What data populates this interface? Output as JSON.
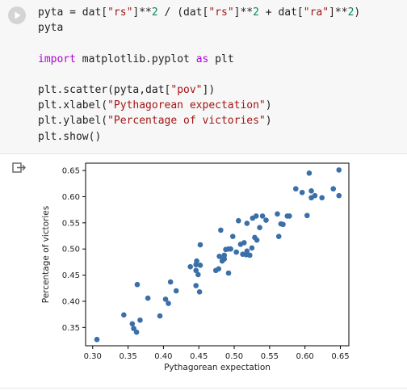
{
  "code_cell": {
    "lines": [
      [
        {
          "t": "pyta = dat[",
          "c": ""
        },
        {
          "t": "\"rs\"",
          "c": "str"
        },
        {
          "t": "]**",
          "c": ""
        },
        {
          "t": "2",
          "c": "num"
        },
        {
          "t": " / (dat[",
          "c": ""
        },
        {
          "t": "\"rs\"",
          "c": "str"
        },
        {
          "t": "]**",
          "c": ""
        },
        {
          "t": "2",
          "c": "num"
        },
        {
          "t": " + dat[",
          "c": ""
        },
        {
          "t": "\"ra\"",
          "c": "str"
        },
        {
          "t": "]**",
          "c": ""
        },
        {
          "t": "2",
          "c": "num"
        },
        {
          "t": ")",
          "c": ""
        }
      ],
      [
        {
          "t": "pyta",
          "c": ""
        }
      ],
      [
        {
          "t": "",
          "c": ""
        }
      ],
      [
        {
          "t": "import",
          "c": "kw"
        },
        {
          "t": " matplotlib.pyplot ",
          "c": ""
        },
        {
          "t": "as",
          "c": "kw"
        },
        {
          "t": " plt",
          "c": ""
        }
      ],
      [
        {
          "t": "",
          "c": ""
        }
      ],
      [
        {
          "t": "plt.scatter(pyta,dat[",
          "c": ""
        },
        {
          "t": "\"pov\"",
          "c": "str"
        },
        {
          "t": "])",
          "c": ""
        }
      ],
      [
        {
          "t": "plt.xlabel(",
          "c": ""
        },
        {
          "t": "\"Pythagorean expectation\"",
          "c": "str"
        },
        {
          "t": ")",
          "c": ""
        }
      ],
      [
        {
          "t": "plt.ylabel(",
          "c": ""
        },
        {
          "t": "\"Percentage of victories\"",
          "c": "str"
        },
        {
          "t": ")",
          "c": ""
        }
      ],
      [
        {
          "t": "plt.show()",
          "c": ""
        }
      ]
    ]
  },
  "icons": {
    "run": "play-icon",
    "output": "output-redirect-icon"
  },
  "colors": {
    "cell_bg": "#f7f7f7",
    "point": "#3a6fa8",
    "string": "#a31515",
    "keyword": "#af00db",
    "number": "#098658"
  },
  "chart_data": {
    "type": "scatter",
    "xlabel": "Pythagorean expectation",
    "ylabel": "Percentage of victories",
    "xlim": [
      0.29,
      0.662
    ],
    "ylim": [
      0.315,
      0.664
    ],
    "xticks": [
      0.3,
      0.35,
      0.4,
      0.45,
      0.5,
      0.55,
      0.6,
      0.65
    ],
    "yticks": [
      0.35,
      0.4,
      0.45,
      0.5,
      0.55,
      0.6,
      0.65
    ],
    "xtick_labels": [
      "0.30",
      "0.35",
      "0.40",
      "0.45",
      "0.50",
      "0.55",
      "0.60",
      "0.65"
    ],
    "ytick_labels": [
      "0.35",
      "0.40",
      "0.45",
      "0.50",
      "0.55",
      "0.60",
      "0.65"
    ],
    "grid": false,
    "points": [
      [
        0.306,
        0.327
      ],
      [
        0.344,
        0.374
      ],
      [
        0.356,
        0.357
      ],
      [
        0.358,
        0.348
      ],
      [
        0.362,
        0.341
      ],
      [
        0.367,
        0.364
      ],
      [
        0.363,
        0.432
      ],
      [
        0.378,
        0.406
      ],
      [
        0.395,
        0.372
      ],
      [
        0.403,
        0.404
      ],
      [
        0.407,
        0.396
      ],
      [
        0.41,
        0.437
      ],
      [
        0.418,
        0.42
      ],
      [
        0.438,
        0.466
      ],
      [
        0.446,
        0.43
      ],
      [
        0.446,
        0.47
      ],
      [
        0.447,
        0.477
      ],
      [
        0.446,
        0.459
      ],
      [
        0.449,
        0.451
      ],
      [
        0.451,
        0.418
      ],
      [
        0.452,
        0.469
      ],
      [
        0.452,
        0.508
      ],
      [
        0.474,
        0.459
      ],
      [
        0.478,
        0.462
      ],
      [
        0.479,
        0.486
      ],
      [
        0.481,
        0.536
      ],
      [
        0.483,
        0.477
      ],
      [
        0.484,
        0.48
      ],
      [
        0.486,
        0.481
      ],
      [
        0.486,
        0.488
      ],
      [
        0.488,
        0.499
      ],
      [
        0.492,
        0.5
      ],
      [
        0.492,
        0.454
      ],
      [
        0.495,
        0.5
      ],
      [
        0.498,
        0.524
      ],
      [
        0.503,
        0.494
      ],
      [
        0.506,
        0.554
      ],
      [
        0.509,
        0.509
      ],
      [
        0.512,
        0.49
      ],
      [
        0.514,
        0.512
      ],
      [
        0.517,
        0.489
      ],
      [
        0.518,
        0.496
      ],
      [
        0.518,
        0.549
      ],
      [
        0.522,
        0.488
      ],
      [
        0.525,
        0.502
      ],
      [
        0.526,
        0.559
      ],
      [
        0.529,
        0.522
      ],
      [
        0.531,
        0.563
      ],
      [
        0.532,
        0.517
      ],
      [
        0.536,
        0.541
      ],
      [
        0.54,
        0.563
      ],
      [
        0.545,
        0.555
      ],
      [
        0.561,
        0.567
      ],
      [
        0.563,
        0.524
      ],
      [
        0.566,
        0.548
      ],
      [
        0.569,
        0.547
      ],
      [
        0.575,
        0.563
      ],
      [
        0.578,
        0.563
      ],
      [
        0.587,
        0.615
      ],
      [
        0.596,
        0.608
      ],
      [
        0.603,
        0.564
      ],
      [
        0.606,
        0.645
      ],
      [
        0.609,
        0.611
      ],
      [
        0.609,
        0.598
      ],
      [
        0.614,
        0.602
      ],
      [
        0.624,
        0.598
      ],
      [
        0.64,
        0.615
      ],
      [
        0.648,
        0.651
      ],
      [
        0.648,
        0.602
      ]
    ]
  }
}
